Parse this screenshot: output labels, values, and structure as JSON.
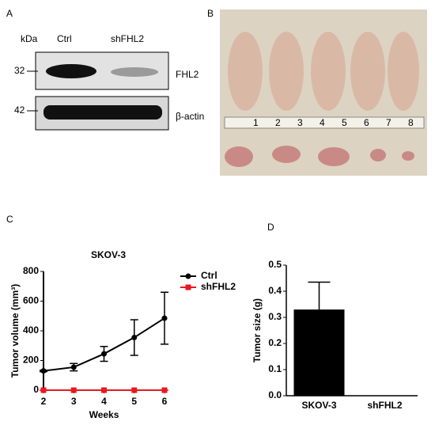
{
  "panels": [
    "A",
    "B",
    "C",
    "D"
  ],
  "blot": {
    "unit": "kDa",
    "lanes": [
      "Ctrl",
      "shFHL2"
    ],
    "rows": [
      {
        "marker": 32,
        "label": "FHL2"
      },
      {
        "marker": 42,
        "label": "β-actin"
      }
    ]
  },
  "photo": {
    "ruler": [
      1,
      2,
      3,
      4,
      5,
      6,
      7,
      8
    ]
  },
  "chart_data": [
    {
      "type": "line",
      "title": "SKOV-3",
      "x_label": "Weeks",
      "y_label": "Tumor volume (mm³)",
      "x": [
        2,
        3,
        4,
        5,
        6
      ],
      "xlim": [
        2,
        6
      ],
      "xticks": [
        2,
        3,
        4,
        5,
        6
      ],
      "ylim": [
        0,
        800
      ],
      "yticks": [
        0,
        200,
        400,
        600,
        800
      ],
      "legend": "right",
      "series": [
        {
          "name": "Ctrl",
          "color": "#000000",
          "values": [
            130,
            155,
            245,
            355,
            485
          ],
          "errors": [
            5,
            25,
            50,
            120,
            175
          ]
        },
        {
          "name": "shFHL2",
          "color": "#e8191f",
          "values": [
            0,
            0,
            0,
            0,
            0
          ],
          "errors": [
            0,
            0,
            0,
            0,
            0
          ]
        }
      ]
    },
    {
      "type": "bar",
      "y_label": "Tumor size (g)",
      "categories": [
        "SKOV-3",
        "shFHL2"
      ],
      "values": [
        0.33,
        0
      ],
      "errors": [
        0.105,
        0
      ],
      "color": "#000000",
      "ylim": [
        0,
        0.5
      ],
      "yticks": [
        {
          "value": 0,
          "label": "0.0"
        },
        0.1,
        0.2,
        0.3,
        0.4,
        0.5
      ]
    }
  ]
}
